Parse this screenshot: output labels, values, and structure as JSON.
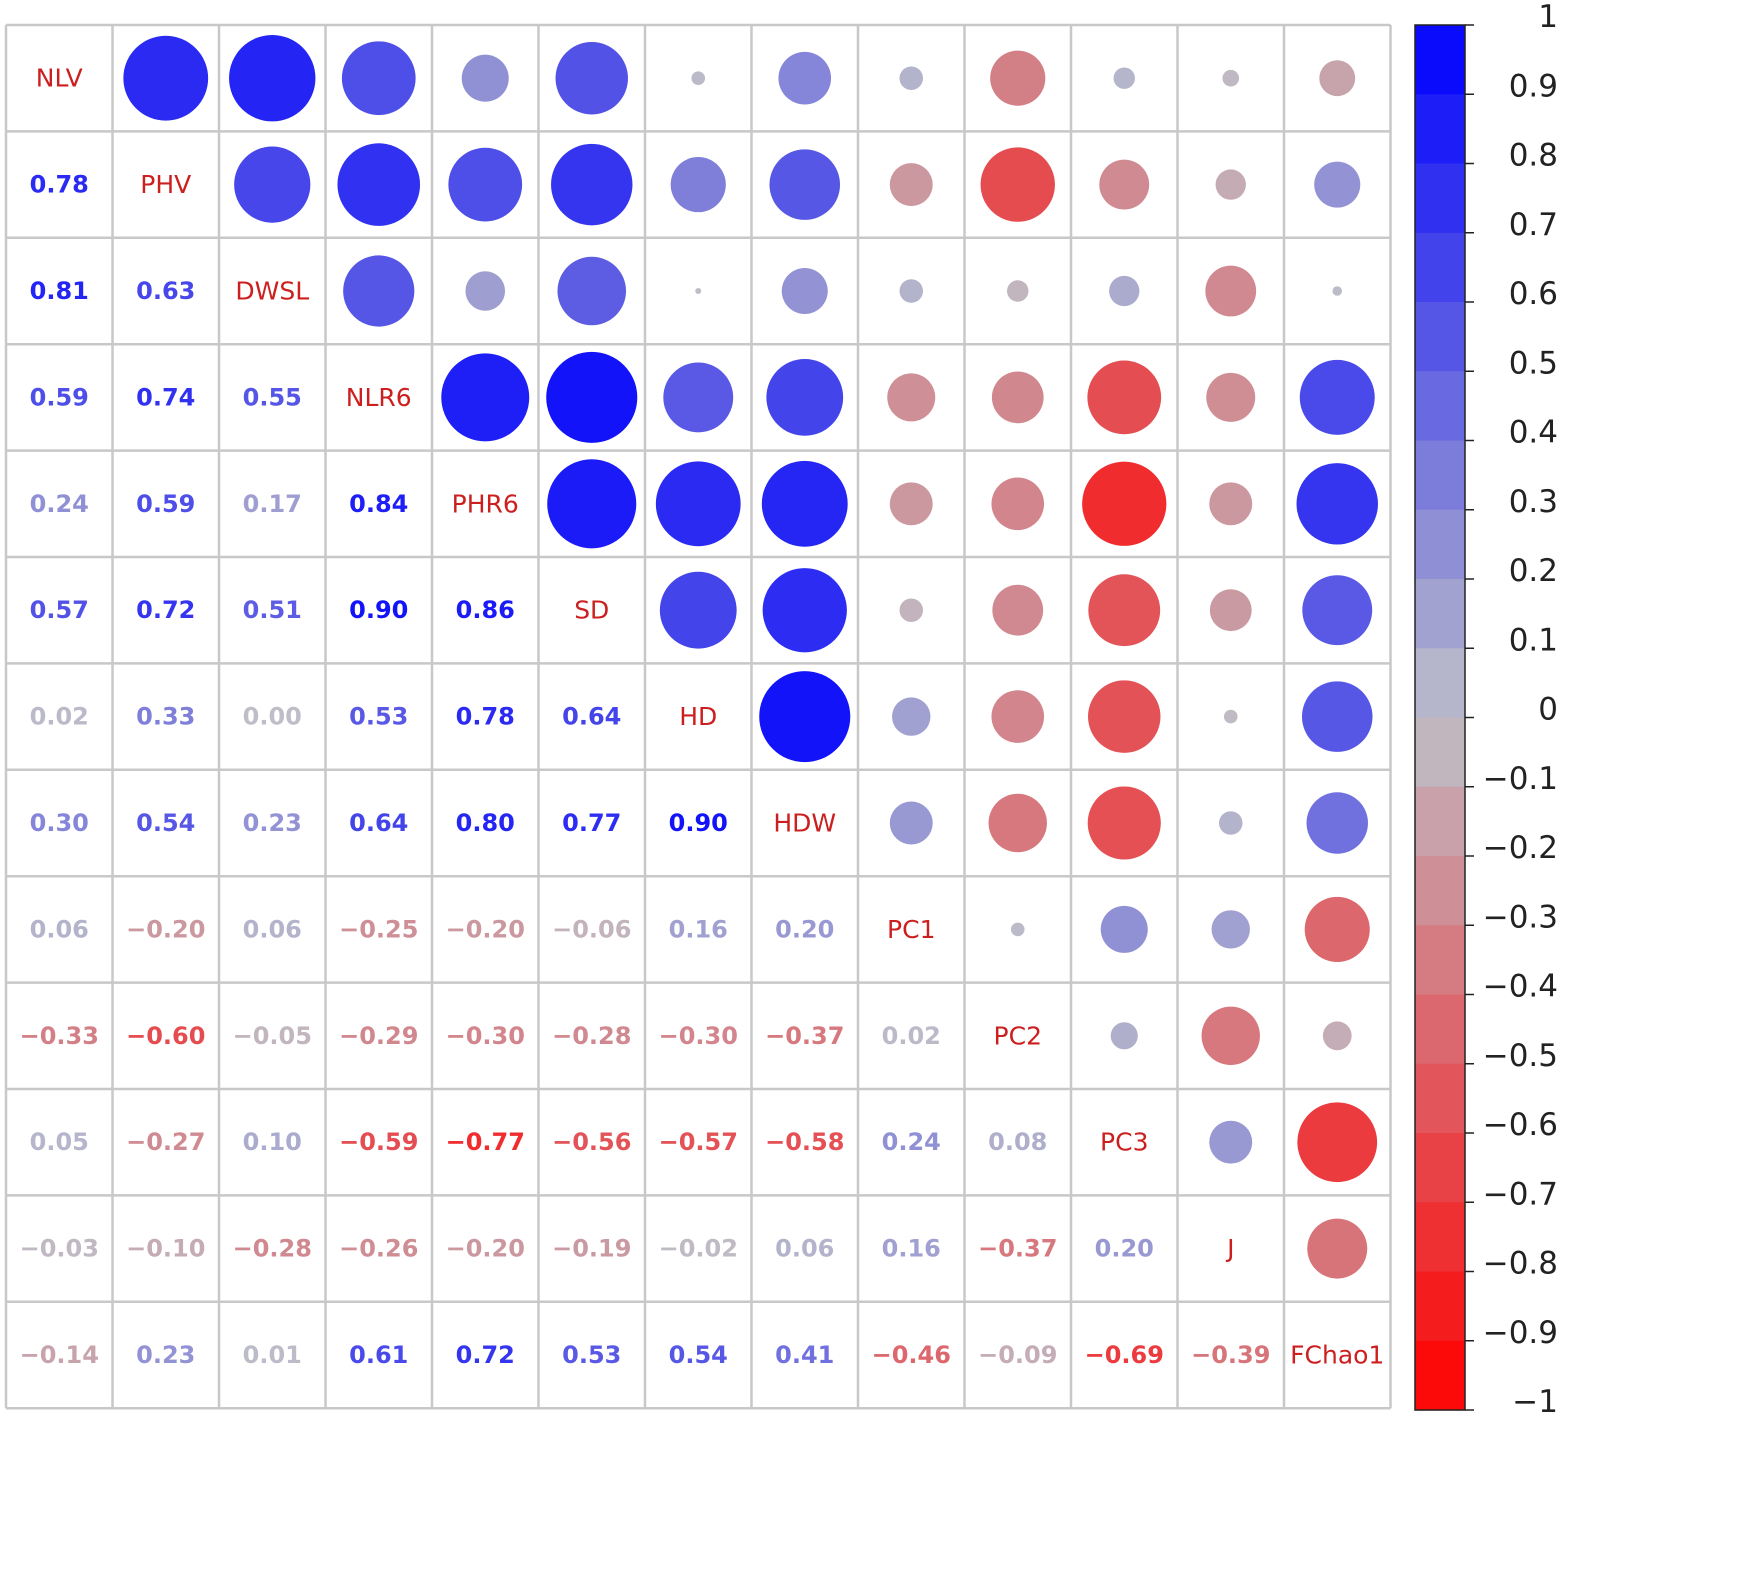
{
  "chart_data": {
    "type": "heatmap",
    "subtype": "correlation-matrix",
    "upper_triangle": "circles",
    "lower_triangle": "numbers",
    "diagonal": "variable names",
    "variables": [
      "NLV",
      "PHV",
      "DWSL",
      "NLR6",
      "PHR6",
      "SD",
      "HD",
      "HDW",
      "PC1",
      "PC2",
      "PC3",
      "J",
      "FChao1"
    ],
    "matrix": [
      [
        1.0,
        0.78,
        0.81,
        0.59,
        0.24,
        0.57,
        0.02,
        0.3,
        0.06,
        -0.33,
        0.05,
        -0.03,
        -0.14
      ],
      [
        0.78,
        1.0,
        0.63,
        0.74,
        0.59,
        0.72,
        0.33,
        0.54,
        -0.2,
        -0.6,
        -0.27,
        -0.1,
        0.23
      ],
      [
        0.81,
        0.63,
        1.0,
        0.55,
        0.17,
        0.51,
        0.0,
        0.23,
        0.06,
        -0.05,
        0.1,
        -0.28,
        0.01
      ],
      [
        0.59,
        0.74,
        0.55,
        1.0,
        0.84,
        0.9,
        0.53,
        0.64,
        -0.25,
        -0.29,
        -0.59,
        -0.26,
        0.61
      ],
      [
        0.24,
        0.59,
        0.17,
        0.84,
        1.0,
        0.86,
        0.78,
        0.8,
        -0.2,
        -0.3,
        -0.77,
        -0.2,
        0.72
      ],
      [
        0.57,
        0.72,
        0.51,
        0.9,
        0.86,
        1.0,
        0.64,
        0.77,
        -0.06,
        -0.28,
        -0.56,
        -0.19,
        0.53
      ],
      [
        0.02,
        0.33,
        0.0,
        0.53,
        0.78,
        0.64,
        1.0,
        0.9,
        0.16,
        -0.3,
        -0.57,
        -0.02,
        0.54
      ],
      [
        0.3,
        0.54,
        0.23,
        0.64,
        0.8,
        0.77,
        0.9,
        1.0,
        0.2,
        -0.37,
        -0.58,
        0.06,
        0.41
      ],
      [
        0.06,
        -0.2,
        0.06,
        -0.25,
        -0.2,
        -0.06,
        0.16,
        0.2,
        1.0,
        0.02,
        0.24,
        0.16,
        -0.46
      ],
      [
        -0.33,
        -0.6,
        -0.05,
        -0.29,
        -0.3,
        -0.28,
        -0.3,
        -0.37,
        0.02,
        1.0,
        0.08,
        -0.37,
        -0.09
      ],
      [
        0.05,
        -0.27,
        0.1,
        -0.59,
        -0.77,
        -0.56,
        -0.57,
        -0.58,
        0.24,
        0.08,
        1.0,
        0.2,
        -0.69
      ],
      [
        -0.03,
        -0.1,
        -0.28,
        -0.26,
        -0.2,
        -0.19,
        -0.02,
        0.06,
        0.16,
        -0.37,
        0.2,
        1.0,
        -0.39
      ],
      [
        -0.14,
        0.23,
        0.01,
        0.61,
        0.72,
        0.53,
        0.54,
        0.41,
        -0.46,
        -0.09,
        -0.69,
        -0.39,
        1.0
      ]
    ],
    "colorbar": {
      "range": [
        -1,
        1
      ],
      "ticks": [
        "1",
        "0.9",
        "0.8",
        "0.7",
        "0.6",
        "0.5",
        "0.4",
        "0.3",
        "0.2",
        "0.1",
        "0",
        "−0.1",
        "−0.2",
        "−0.3",
        "−0.4",
        "−0.5",
        "−0.6",
        "−0.7",
        "−0.8",
        "−0.9",
        "−1"
      ],
      "position": "right"
    },
    "colors": {
      "positive": "#0000FF",
      "zero": "#BEBEC8",
      "negative": "#FF0000",
      "label_text": "#CC1F1F",
      "grid": "#C8C8C8"
    }
  }
}
